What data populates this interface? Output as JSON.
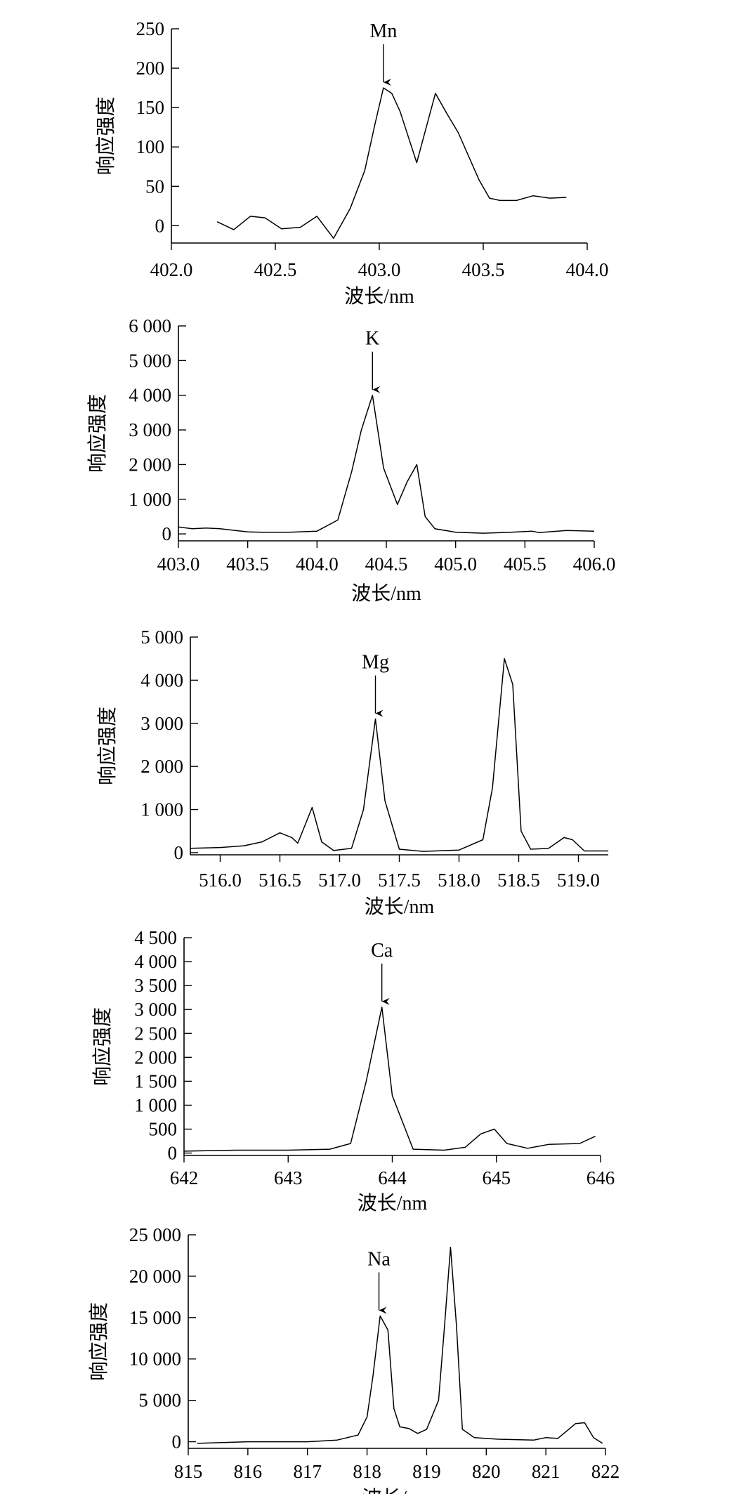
{
  "chart_data": [
    {
      "type": "line",
      "annotation": "Mn",
      "annotation_x": 403.02,
      "xlabel": "波长/nm",
      "ylabel": "响应强度",
      "xlim": [
        402.0,
        404.0
      ],
      "ylim": [
        -22,
        250
      ],
      "xticks": [
        402.0,
        402.5,
        403.0,
        403.5,
        404.0
      ],
      "xtick_labels": [
        "402.0",
        "402.5",
        "403.0",
        "403.5",
        "404.0"
      ],
      "yticks": [
        0,
        50,
        100,
        150,
        200,
        250
      ],
      "ytick_labels": [
        "0",
        "50",
        "100",
        "150",
        "200",
        "250"
      ],
      "x": [
        402.22,
        402.3,
        402.38,
        402.45,
        402.53,
        402.62,
        402.7,
        402.78,
        402.86,
        402.93,
        402.98,
        403.02,
        403.06,
        403.1,
        403.18,
        403.27,
        403.33,
        403.38,
        403.43,
        403.48,
        403.53,
        403.58,
        403.66,
        403.74,
        403.82,
        403.9
      ],
      "y": [
        5,
        -5,
        12,
        10,
        -4,
        -2,
        12,
        -16,
        22,
        70,
        130,
        175,
        168,
        145,
        80,
        168,
        140,
        118,
        88,
        58,
        35,
        32,
        32,
        38,
        35,
        36
      ]
    },
    {
      "type": "line",
      "annotation": "K",
      "annotation_x": 404.4,
      "xlabel": "波长/nm",
      "ylabel": "响应强度",
      "xlim": [
        403.0,
        406.0
      ],
      "ylim": [
        -200,
        6000
      ],
      "xticks": [
        403.0,
        403.5,
        404.0,
        404.5,
        405.0,
        405.5,
        406.0
      ],
      "xtick_labels": [
        "403.0",
        "403.5",
        "404.0",
        "404.5",
        "405.0",
        "405.5",
        "406.0"
      ],
      "yticks": [
        0,
        1000,
        2000,
        3000,
        4000,
        5000,
        6000
      ],
      "ytick_labels": [
        "0",
        "1 000",
        "2 000",
        "3 000",
        "4 000",
        "5 000",
        "6 000"
      ],
      "x": [
        403.0,
        403.1,
        403.2,
        403.3,
        403.5,
        403.6,
        403.8,
        404.0,
        404.15,
        404.25,
        404.32,
        404.4,
        404.48,
        404.58,
        404.65,
        404.72,
        404.78,
        404.85,
        405.0,
        405.2,
        405.4,
        405.55,
        405.6,
        405.8,
        406.0
      ],
      "y": [
        200,
        150,
        170,
        150,
        60,
        50,
        50,
        80,
        400,
        1800,
        3000,
        4000,
        1900,
        850,
        1500,
        2000,
        500,
        150,
        50,
        20,
        50,
        80,
        40,
        100,
        80
      ]
    },
    {
      "type": "line",
      "annotation": "Mg",
      "annotation_x": 517.3,
      "xlabel": "波长/nm",
      "ylabel": "响应强度",
      "xlim": [
        515.75,
        519.25
      ],
      "ylim": [
        -50,
        5000
      ],
      "xticks": [
        516.0,
        516.5,
        517.0,
        517.5,
        518.0,
        518.5,
        519.0
      ],
      "xtick_labels": [
        "516.0",
        "516.5",
        "517.0",
        "517.5",
        "518.0",
        "518.5",
        "519.0"
      ],
      "yticks": [
        0,
        1000,
        2000,
        3000,
        4000,
        5000
      ],
      "ytick_labels": [
        "0",
        "1 000",
        "2 000",
        "3 000",
        "4 000",
        "5 000"
      ],
      "x": [
        515.75,
        516.0,
        516.2,
        516.35,
        516.5,
        516.6,
        516.65,
        516.77,
        516.85,
        516.95,
        517.1,
        517.2,
        517.3,
        517.38,
        517.5,
        517.7,
        518.0,
        518.2,
        518.28,
        518.38,
        518.45,
        518.52,
        518.6,
        518.75,
        518.88,
        518.95,
        519.05,
        519.25
      ],
      "y": [
        100,
        120,
        160,
        250,
        460,
        350,
        220,
        1050,
        250,
        50,
        100,
        1000,
        3100,
        1200,
        80,
        30,
        60,
        300,
        1500,
        4500,
        3900,
        500,
        80,
        100,
        350,
        300,
        40,
        40
      ]
    },
    {
      "type": "line",
      "annotation": "Ca",
      "annotation_x": 643.9,
      "xlabel": "波长/nm",
      "ylabel": "响应强度",
      "xlim": [
        642,
        646
      ],
      "ylim": [
        -50,
        4500
      ],
      "xticks": [
        642,
        643,
        644,
        645,
        646
      ],
      "xtick_labels": [
        "642",
        "643",
        "644",
        "645",
        "646"
      ],
      "yticks": [
        0,
        500,
        1000,
        1500,
        2000,
        2500,
        3000,
        3500,
        4000,
        4500
      ],
      "ytick_labels": [
        "0",
        "500",
        "1 000",
        "1 500",
        "2 000",
        "2 500",
        "3 000",
        "3 500",
        "4 000",
        "4 500"
      ],
      "x": [
        642.0,
        642.5,
        643.0,
        643.4,
        643.6,
        643.75,
        643.9,
        644.0,
        644.2,
        644.5,
        644.7,
        644.85,
        644.98,
        645.1,
        645.3,
        645.5,
        645.8,
        645.95
      ],
      "y": [
        40,
        60,
        60,
        80,
        200,
        1500,
        3050,
        1200,
        80,
        60,
        120,
        400,
        500,
        200,
        100,
        180,
        200,
        350
      ]
    },
    {
      "type": "line",
      "annotation": "Na",
      "annotation_x": 818.2,
      "xlabel": "波长/nm",
      "ylabel": "响应强度",
      "xlim": [
        815,
        822
      ],
      "ylim": [
        -800,
        25000
      ],
      "xticks": [
        815,
        816,
        817,
        818,
        819,
        820,
        821,
        822
      ],
      "xtick_labels": [
        "815",
        "816",
        "817",
        "818",
        "819",
        "820",
        "821",
        "822"
      ],
      "yticks": [
        0,
        5000,
        10000,
        15000,
        20000,
        25000
      ],
      "ytick_labels": [
        "0",
        "5 000",
        "10 000",
        "15 000",
        "20 000",
        "25 000"
      ],
      "x": [
        815.15,
        816.0,
        816.6,
        817.0,
        817.5,
        817.85,
        818.0,
        818.1,
        818.22,
        818.35,
        818.45,
        818.55,
        818.7,
        818.85,
        819.0,
        819.2,
        819.3,
        819.4,
        819.5,
        819.6,
        819.8,
        820.2,
        820.8,
        821.0,
        821.2,
        821.5,
        821.65,
        821.8,
        821.95
      ],
      "y": [
        -200,
        0,
        0,
        0,
        200,
        800,
        3000,
        8000,
        15200,
        13500,
        4000,
        1800,
        1600,
        1000,
        1500,
        5000,
        14000,
        23500,
        14000,
        1500,
        500,
        300,
        200,
        500,
        400,
        2200,
        2300,
        500,
        -200
      ]
    }
  ]
}
